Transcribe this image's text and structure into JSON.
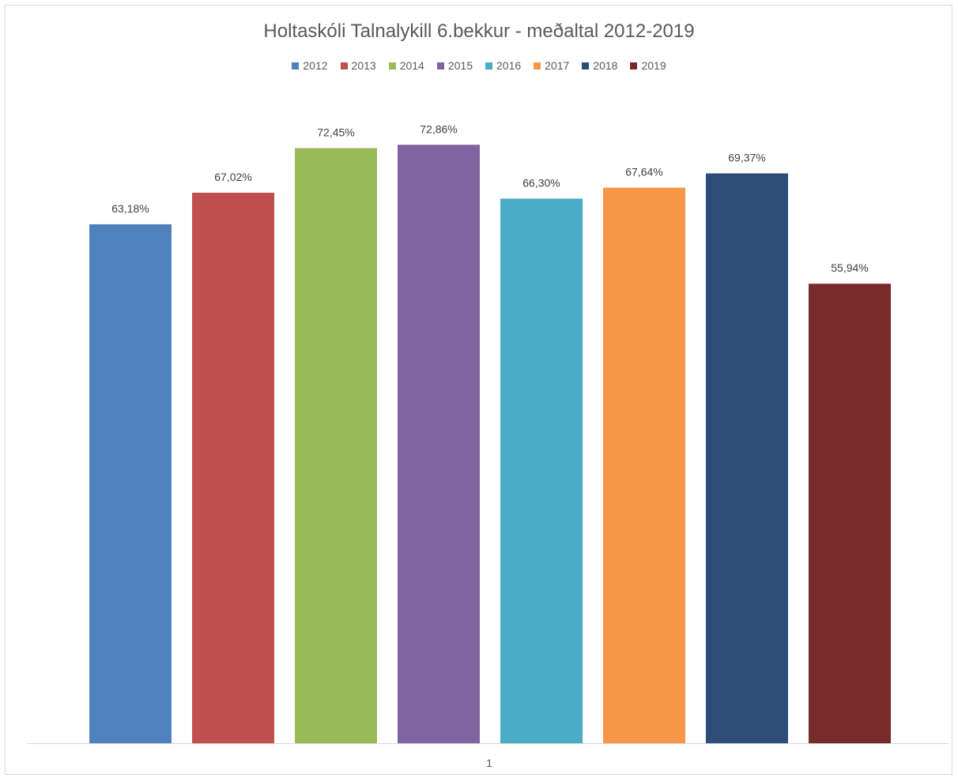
{
  "chart_data": {
    "type": "bar",
    "title": "Holtaskóli Talnalykill 6.bekkur - meðaltal 2012-2019",
    "xlabel": "",
    "ylabel": "",
    "categories": [
      "1"
    ],
    "ylim": [
      0,
      0.8
    ],
    "grid": false,
    "legend_position": "top",
    "series": [
      {
        "name": "2012",
        "values": [
          0.6318
        ],
        "label": "63,18%",
        "color": "#4F81BD"
      },
      {
        "name": "2013",
        "values": [
          0.6702
        ],
        "label": "67,02%",
        "color": "#C0504D"
      },
      {
        "name": "2014",
        "values": [
          0.7245
        ],
        "label": "72,45%",
        "color": "#9BBB59"
      },
      {
        "name": "2015",
        "values": [
          0.7286
        ],
        "label": "72,86%",
        "color": "#8064A2"
      },
      {
        "name": "2016",
        "values": [
          0.663
        ],
        "label": "66,30%",
        "color": "#4BACC6"
      },
      {
        "name": "2017",
        "values": [
          0.6764
        ],
        "label": "67,64%",
        "color": "#F79646"
      },
      {
        "name": "2018",
        "values": [
          0.6937
        ],
        "label": "69,37%",
        "color": "#2C4D75"
      },
      {
        "name": "2019",
        "values": [
          0.5594
        ],
        "label": "55,94%",
        "color": "#772C2A"
      }
    ]
  }
}
